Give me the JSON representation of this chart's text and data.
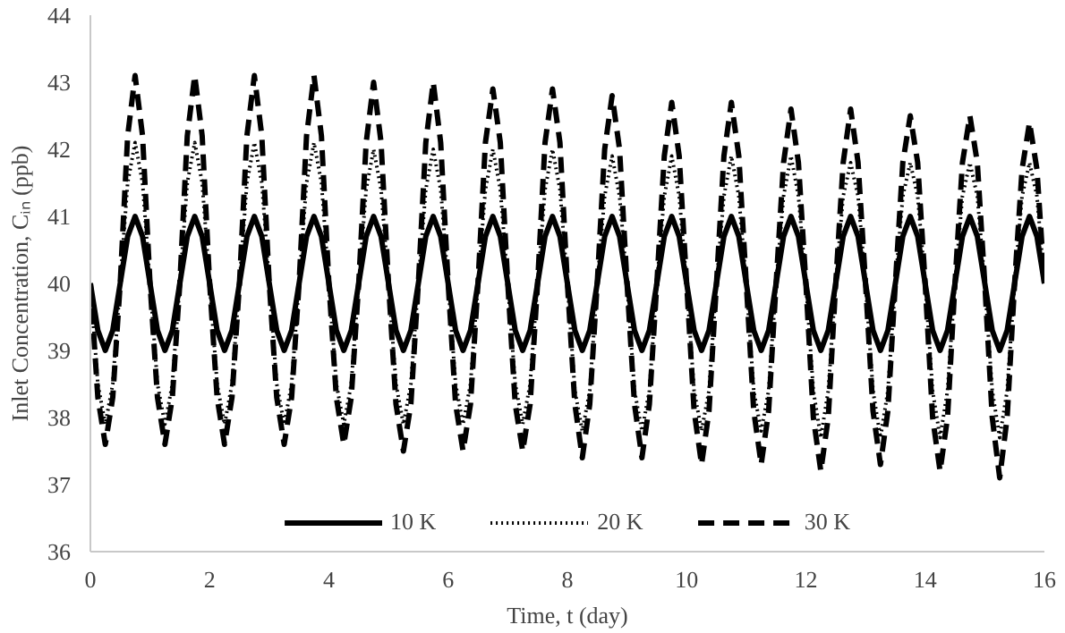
{
  "chart_data": {
    "type": "line",
    "xlabel": "Time, t (day)",
    "ylabel": "Inlet Concentration, Cᵢₙ (ppb)",
    "xlim": [
      0,
      16
    ],
    "xticks": [
      0,
      2,
      4,
      6,
      8,
      10,
      12,
      14,
      16
    ],
    "ylim": [
      36,
      44
    ],
    "yticks": [
      36,
      37,
      38,
      39,
      40,
      41,
      42,
      43,
      44
    ],
    "grid": false,
    "legend": "bottom",
    "marker": "none",
    "x": [
      0,
      0.125,
      0.25,
      0.375,
      0.5,
      0.625,
      0.75,
      0.875,
      1,
      1.125,
      1.25,
      1.375,
      1.5,
      1.625,
      1.75,
      1.875,
      2,
      2.125,
      2.25,
      2.375,
      2.5,
      2.625,
      2.75,
      2.875,
      3,
      3.125,
      3.25,
      3.375,
      3.5,
      3.625,
      3.75,
      3.875,
      4,
      4.125,
      4.25,
      4.375,
      4.5,
      4.625,
      4.75,
      4.875,
      5,
      5.125,
      5.25,
      5.375,
      5.5,
      5.625,
      5.75,
      5.875,
      6,
      6.125,
      6.25,
      6.375,
      6.5,
      6.625,
      6.75,
      6.875,
      7,
      7.125,
      7.25,
      7.375,
      7.5,
      7.625,
      7.75,
      7.875,
      8,
      8.125,
      8.25,
      8.375,
      8.5,
      8.625,
      8.75,
      8.875,
      9,
      9.125,
      9.25,
      9.375,
      9.5,
      9.625,
      9.75,
      9.875,
      10,
      10.125,
      10.25,
      10.375,
      10.5,
      10.625,
      10.75,
      10.875,
      11,
      11.125,
      11.25,
      11.375,
      11.5,
      11.625,
      11.75,
      11.875,
      12,
      12.125,
      12.25,
      12.375,
      12.5,
      12.625,
      12.75,
      12.875,
      13,
      13.125,
      13.25,
      13.375,
      13.5,
      13.625,
      13.75,
      13.875,
      14,
      14.125,
      14.25,
      14.375,
      14.5,
      14.625,
      14.75,
      14.875,
      15,
      15.125,
      15.25,
      15.375,
      15.5,
      15.625,
      15.75,
      15.875,
      16
    ],
    "series": [
      {
        "name": "10 K",
        "color": "#000000",
        "line_style": "solid",
        "values": [
          40,
          39.3,
          39,
          39.3,
          40,
          40.7,
          41,
          40.7,
          40,
          39.3,
          39,
          39.3,
          40,
          40.7,
          41,
          40.7,
          40,
          39.3,
          39,
          39.3,
          40,
          40.7,
          41,
          40.7,
          40,
          39.3,
          39,
          39.3,
          40,
          40.7,
          41,
          40.7,
          40,
          39.3,
          39,
          39.3,
          40,
          40.7,
          41,
          40.7,
          40,
          39.3,
          39,
          39.3,
          40,
          40.7,
          41,
          40.7,
          40,
          39.3,
          39,
          39.3,
          40,
          40.7,
          41,
          40.7,
          40,
          39.3,
          39,
          39.3,
          40,
          40.7,
          41,
          40.7,
          40,
          39.3,
          39,
          39.3,
          40,
          40.7,
          41,
          40.7,
          40,
          39.3,
          39,
          39.3,
          40,
          40.7,
          41,
          40.7,
          40,
          39.3,
          39,
          39.3,
          40,
          40.7,
          41,
          40.7,
          40,
          39.3,
          39,
          39.3,
          40,
          40.7,
          41,
          40.7,
          40,
          39.3,
          39,
          39.3,
          40,
          40.7,
          41,
          40.7,
          40,
          39.3,
          39,
          39.3,
          40,
          40.7,
          41,
          40.7,
          40,
          39.3,
          39,
          39.3,
          40,
          40.7,
          41,
          40.7,
          40,
          39.3,
          39,
          39.3,
          40,
          40.7,
          41,
          40.7,
          40
        ]
      },
      {
        "name": "20 K",
        "color": "#000000",
        "line_style": "dotted",
        "values": [
          40,
          38.5,
          37.9,
          38.5,
          40,
          41.5,
          42.1,
          41.5,
          40,
          38.5,
          37.9,
          38.5,
          40,
          41.5,
          42.1,
          41.5,
          40,
          38.5,
          37.9,
          38.5,
          40,
          41.5,
          42.1,
          41.5,
          40,
          38.5,
          37.9,
          38.5,
          40,
          41.5,
          42.1,
          41.5,
          40,
          38.5,
          37.9,
          38.5,
          40,
          41.4,
          42.0,
          41.4,
          40,
          38.5,
          37.9,
          38.5,
          40,
          41.4,
          42.0,
          41.4,
          40,
          38.5,
          37.9,
          38.5,
          40,
          41.4,
          42.0,
          41.4,
          40,
          38.5,
          37.9,
          38.5,
          40,
          41.4,
          42.0,
          41.4,
          40,
          38.4,
          37.8,
          38.4,
          40,
          41.3,
          41.9,
          41.3,
          40,
          38.4,
          37.8,
          38.4,
          40,
          41.3,
          41.9,
          41.3,
          40,
          38.4,
          37.8,
          38.4,
          40,
          41.3,
          41.9,
          41.3,
          40,
          38.4,
          37.8,
          38.4,
          40,
          41.3,
          41.9,
          41.3,
          40,
          38.4,
          37.7,
          38.4,
          40,
          41.3,
          41.8,
          41.3,
          40,
          38.4,
          37.7,
          38.4,
          40,
          41.3,
          41.8,
          41.3,
          40,
          38.4,
          37.7,
          38.4,
          40,
          41.3,
          41.8,
          41.3,
          40,
          38.4,
          37.7,
          38.4,
          40,
          41.3,
          41.8,
          41.3,
          40
        ]
      },
      {
        "name": "30 K",
        "color": "#000000",
        "line_style": "dashed",
        "values": [
          40,
          38.3,
          37.6,
          38.3,
          40,
          42.2,
          43.1,
          42.2,
          40,
          38.3,
          37.6,
          38.3,
          40,
          42.2,
          43.1,
          42.2,
          40,
          38.3,
          37.6,
          38.3,
          40,
          42.2,
          43.1,
          42.2,
          40,
          38.3,
          37.6,
          38.3,
          40,
          42.2,
          43.1,
          42.2,
          40,
          38.3,
          37.6,
          38.3,
          40,
          42.1,
          43.0,
          42.1,
          40,
          38.2,
          37.5,
          38.2,
          40,
          42.1,
          43.0,
          42.1,
          40,
          38.2,
          37.5,
          38.2,
          40,
          42.1,
          42.9,
          42.1,
          40,
          38.2,
          37.5,
          38.2,
          40,
          42.1,
          42.9,
          42.1,
          40,
          38.2,
          37.4,
          38.2,
          40,
          42.0,
          42.8,
          42.0,
          40,
          38.2,
          37.4,
          38.2,
          40,
          41.9,
          42.7,
          41.9,
          40,
          38.1,
          37.3,
          38.1,
          40,
          41.9,
          42.7,
          41.9,
          40,
          38.1,
          37.3,
          38.1,
          40,
          41.8,
          42.6,
          41.8,
          40,
          38.0,
          37.2,
          38.0,
          40,
          41.8,
          42.6,
          41.8,
          40,
          38.1,
          37.3,
          38.1,
          40,
          41.8,
          42.5,
          41.8,
          40,
          38.0,
          37.2,
          38.0,
          40,
          41.8,
          42.5,
          41.8,
          40,
          38.0,
          37.1,
          38.0,
          40,
          41.7,
          42.4,
          41.7,
          40
        ]
      }
    ]
  }
}
